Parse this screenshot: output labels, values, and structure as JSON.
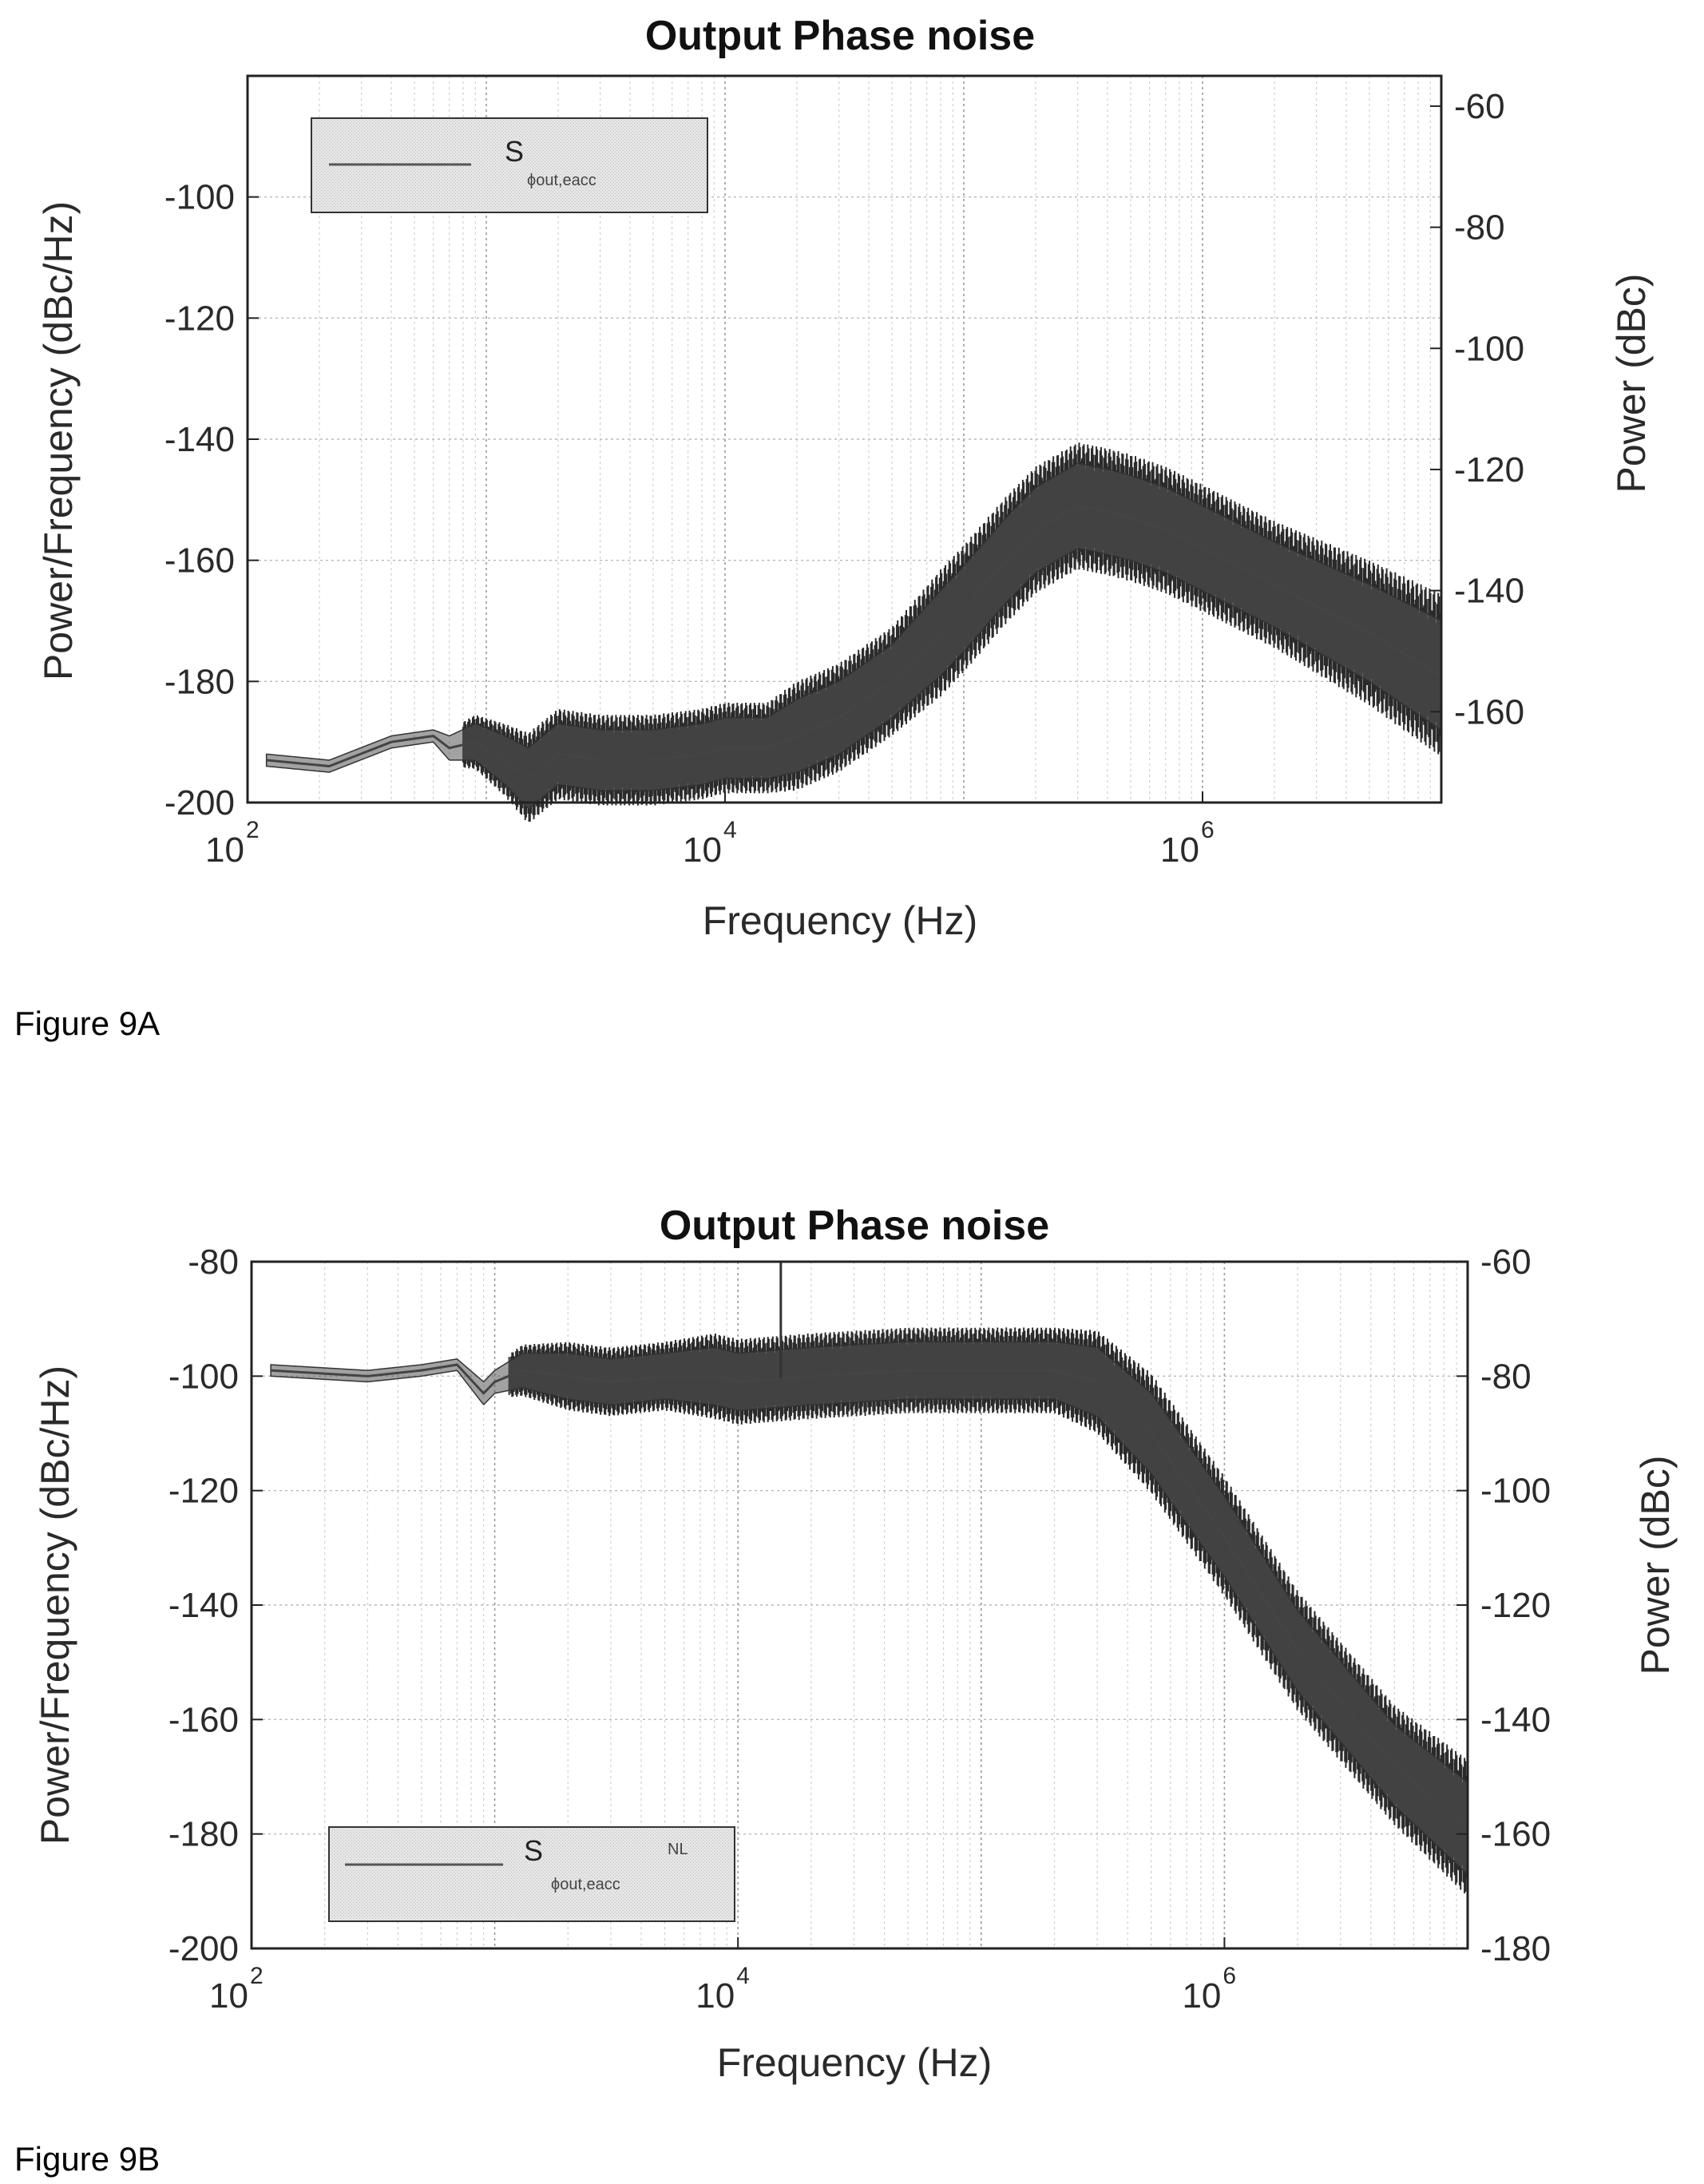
{
  "chart_data": [
    {
      "type": "line",
      "title": "Output Phase noise",
      "caption": "Figure 9A",
      "xlabel": "Frequency (Hz)",
      "ylabel": "Power/Frequency (dBc/Hz)",
      "y2label": "Power (dBc)",
      "xscale": "log",
      "xlim": [
        100,
        10000000
      ],
      "ylim": [
        -200,
        -80
      ],
      "y2lim": [
        -175,
        -55
      ],
      "x_ticks": [
        {
          "base": "10",
          "exp": "2",
          "value": 100
        },
        {
          "base": "10",
          "exp": "4",
          "value": 10000
        },
        {
          "base": "10",
          "exp": "6",
          "value": 1000000
        }
      ],
      "y_ticks": [
        "-100",
        "-120",
        "-140",
        "-160",
        "-180",
        "-200"
      ],
      "y_tick_values": [
        -100,
        -120,
        -140,
        -160,
        -180,
        -200
      ],
      "y2_ticks": [
        "-60",
        "-80",
        "-100",
        "-120",
        "-140",
        "-160"
      ],
      "y2_tick_values": [
        -60,
        -80,
        -100,
        -120,
        -140,
        -160
      ],
      "grid": true,
      "legend": {
        "position": "top-left",
        "symbol": "S",
        "sub": "ϕout,eacc",
        "sup": ""
      },
      "series": [
        {
          "x": [
            120,
            220,
            400,
            600,
            700,
            900,
            1200,
            1500,
            2000,
            3000,
            5000,
            8000,
            10000,
            15000,
            20000,
            30000,
            50000,
            80000,
            100000,
            150000,
            200000,
            300000,
            400000,
            500000,
            700000,
            1000000,
            2000000,
            5000000,
            10000000
          ],
          "y": [
            -193,
            -194,
            -190,
            -189,
            -191,
            -190,
            -193,
            -196,
            -192,
            -193,
            -193,
            -192,
            -191,
            -191,
            -189,
            -186,
            -180,
            -172,
            -168,
            -160,
            -155,
            -151,
            -152,
            -153,
            -155,
            -158,
            -164,
            -172,
            -179
          ],
          "band": [
            1,
            1,
            1,
            1,
            2,
            3,
            4,
            5,
            5,
            5,
            5,
            5,
            5,
            5,
            6,
            6,
            6,
            7,
            7,
            7,
            7,
            7,
            7,
            7,
            7,
            7,
            7,
            8,
            9
          ]
        }
      ]
    },
    {
      "type": "line",
      "title": "Output Phase noise",
      "caption": "Figure 9B",
      "xlabel": "Frequency (Hz)",
      "ylabel": "Power/Frequency (dBc/Hz)",
      "y2label": "Power (dBc)",
      "xscale": "log",
      "xlim": [
        100,
        10000000
      ],
      "ylim": [
        -200,
        -80
      ],
      "y2lim": [
        -180,
        -60
      ],
      "x_ticks": [
        {
          "base": "10",
          "exp": "2",
          "value": 100
        },
        {
          "base": "10",
          "exp": "4",
          "value": 10000
        },
        {
          "base": "10",
          "exp": "6",
          "value": 1000000
        }
      ],
      "y_ticks": [
        "-80",
        "-100",
        "-120",
        "-140",
        "-160",
        "-180",
        "-200"
      ],
      "y_tick_values": [
        -80,
        -100,
        -120,
        -140,
        -160,
        -180,
        -200
      ],
      "y2_ticks": [
        "-60",
        "-80",
        "-100",
        "-120",
        "-140",
        "-160",
        "-180"
      ],
      "y2_tick_values": [
        -60,
        -80,
        -100,
        -120,
        -140,
        -160,
        -180
      ],
      "grid": true,
      "legend": {
        "position": "bottom-left",
        "symbol": "S",
        "sub": "ϕout,eacc",
        "sup": "NL"
      },
      "spike": {
        "x": 15000,
        "y": -80
      },
      "series": [
        {
          "x": [
            120,
            300,
            500,
            700,
            900,
            1000,
            1300,
            2000,
            3000,
            5000,
            8000,
            10000,
            20000,
            50000,
            100000,
            200000,
            300000,
            500000,
            1000000,
            2000000,
            5000000,
            10000000
          ],
          "y": [
            -99,
            -100,
            -99,
            -98,
            -103,
            -101,
            -99,
            -100,
            -101,
            -100,
            -100,
            -101,
            -100,
            -99,
            -99,
            -99,
            -101,
            -110,
            -128,
            -148,
            -168,
            -179
          ],
          "band": [
            1,
            1,
            1,
            1,
            2,
            2,
            3,
            4,
            4,
            4,
            5,
            5,
            5,
            5,
            5,
            5,
            6,
            7,
            7,
            7,
            7,
            8
          ]
        }
      ]
    }
  ]
}
